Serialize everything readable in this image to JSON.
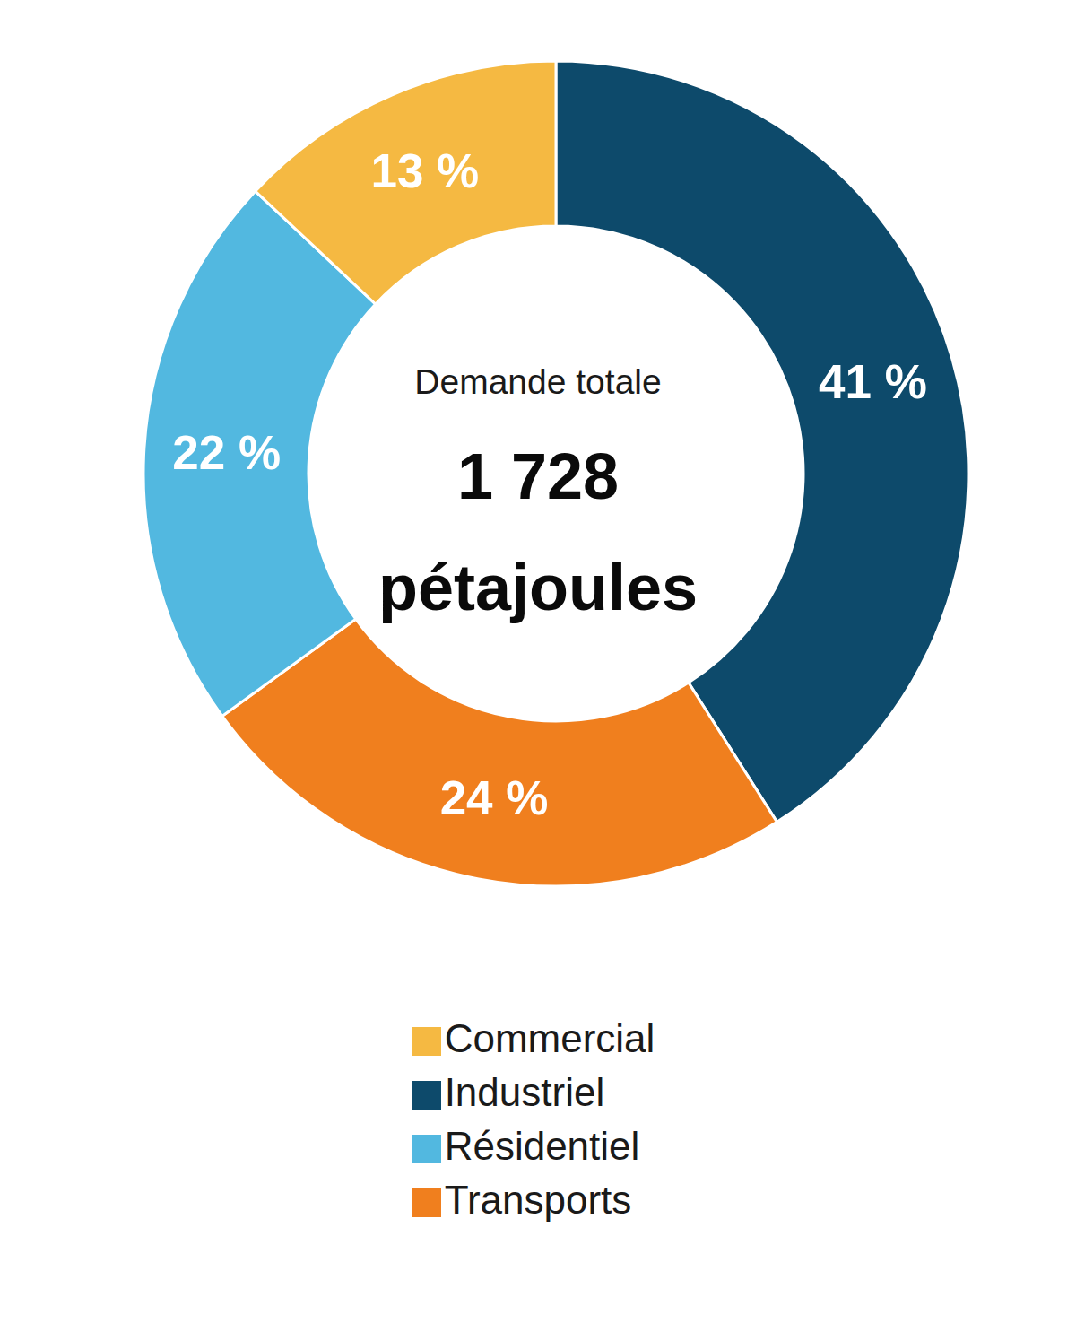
{
  "chart_data": {
    "type": "donut",
    "categories": [
      "Industriel",
      "Transports",
      "Résidentiel",
      "Commercial"
    ],
    "values": [
      41,
      24,
      22,
      13
    ],
    "value_labels": [
      "41 %",
      "24 %",
      "22 %",
      "13 %"
    ],
    "colors": [
      "#0d4a6b",
      "#f07f1e",
      "#52b8e0",
      "#f5b942"
    ],
    "data_labels": true,
    "legend": "bottom",
    "annotations": [
      "Demande totale",
      "1 728",
      "pétajoules"
    ]
  }
}
